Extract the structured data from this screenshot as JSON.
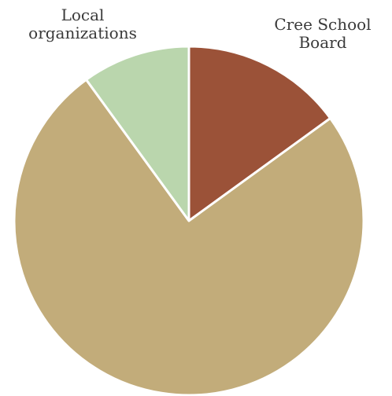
{
  "chart_data": {
    "type": "pie",
    "title": "",
    "start_angle_deg": 0,
    "direction": "clockwise",
    "slices": [
      {
        "label": "Cree School\nBoard",
        "value": 15,
        "color": "#9b5238"
      },
      {
        "label": "",
        "value": 75,
        "color": "#c2ac7a"
      },
      {
        "label": "Local\norganizations",
        "value": 10,
        "color": "#bad6ad"
      }
    ],
    "legend": "none",
    "slice_border_color": "#ffffff"
  }
}
